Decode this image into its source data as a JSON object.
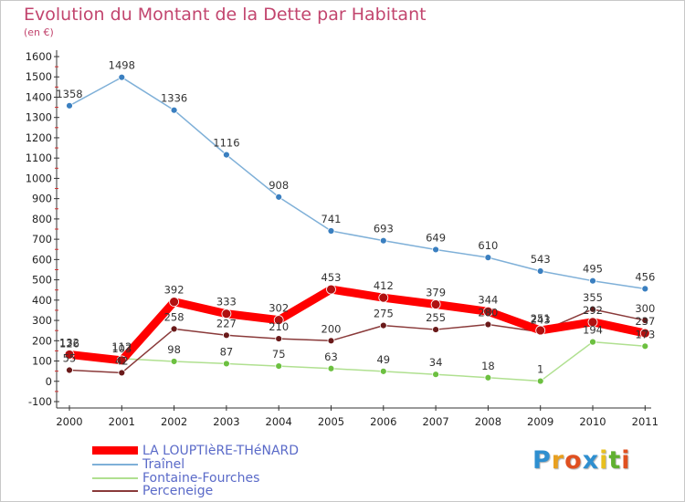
{
  "chart_data": {
    "type": "line",
    "title": "Evolution du Montant de la Dette par Habitant",
    "subtitle": "(en €)",
    "x": [
      "2000",
      "2001",
      "2002",
      "2003",
      "2004",
      "2005",
      "2006",
      "2007",
      "2008",
      "2009",
      "2010",
      "2011"
    ],
    "ylim": [
      -100,
      1600
    ],
    "yticks": [
      -100,
      0,
      100,
      200,
      300,
      400,
      500,
      600,
      700,
      800,
      900,
      1000,
      1100,
      1200,
      1300,
      1400,
      1500,
      1600
    ],
    "grid": false,
    "legend_position": "bottom-left",
    "series": [
      {
        "name": "LA LOUPTIèRE-THéNARD",
        "color": "#ff0000",
        "marker_color": "#b01010",
        "values": [
          132,
          103,
          392,
          333,
          302,
          453,
          412,
          379,
          344,
          251,
          292,
          237
        ],
        "labels": [
          "132",
          "103",
          "392",
          "333",
          "302",
          "453",
          "412",
          "379",
          "344",
          "251",
          "292",
          "237"
        ]
      },
      {
        "name": "Traînel",
        "color": "#7fb0d8",
        "marker_color": "#3a7fc0",
        "values": [
          1358,
          1498,
          1336,
          1116,
          908,
          741,
          693,
          649,
          610,
          543,
          495,
          456
        ],
        "labels": [
          "1358",
          "1498",
          "1336",
          "1116",
          "908",
          "741",
          "693",
          "649",
          "610",
          "543",
          "495",
          "456"
        ]
      },
      {
        "name": "Fontaine-Fourches",
        "color": "#b0e090",
        "marker_color": "#6cc040",
        "values": [
          126,
          112,
          98,
          87,
          75,
          63,
          49,
          34,
          18,
          1,
          194,
          173
        ],
        "labels": [
          "126",
          "112",
          "98",
          "87",
          "75",
          "63",
          "49",
          "34",
          "18",
          "1",
          "194",
          "173"
        ]
      },
      {
        "name": "Perceneige",
        "color": "#8a3a3a",
        "marker_color": "#6a1a1a",
        "values": [
          55,
          42,
          258,
          227,
          210,
          200,
          275,
          255,
          280,
          243,
          355,
          300
        ],
        "labels": [
          "55",
          "42",
          "258",
          "227",
          "210",
          "200",
          "275",
          "255",
          "280",
          "243",
          "355",
          "300"
        ]
      }
    ]
  },
  "logo": {
    "letters": [
      "P",
      "r",
      "o",
      "x",
      "i",
      "t",
      "i"
    ],
    "colors": [
      "#2e8fd0",
      "#e8a020",
      "#e05020",
      "#2e8fd0",
      "#e8c020",
      "#60b030",
      "#e05020"
    ]
  }
}
